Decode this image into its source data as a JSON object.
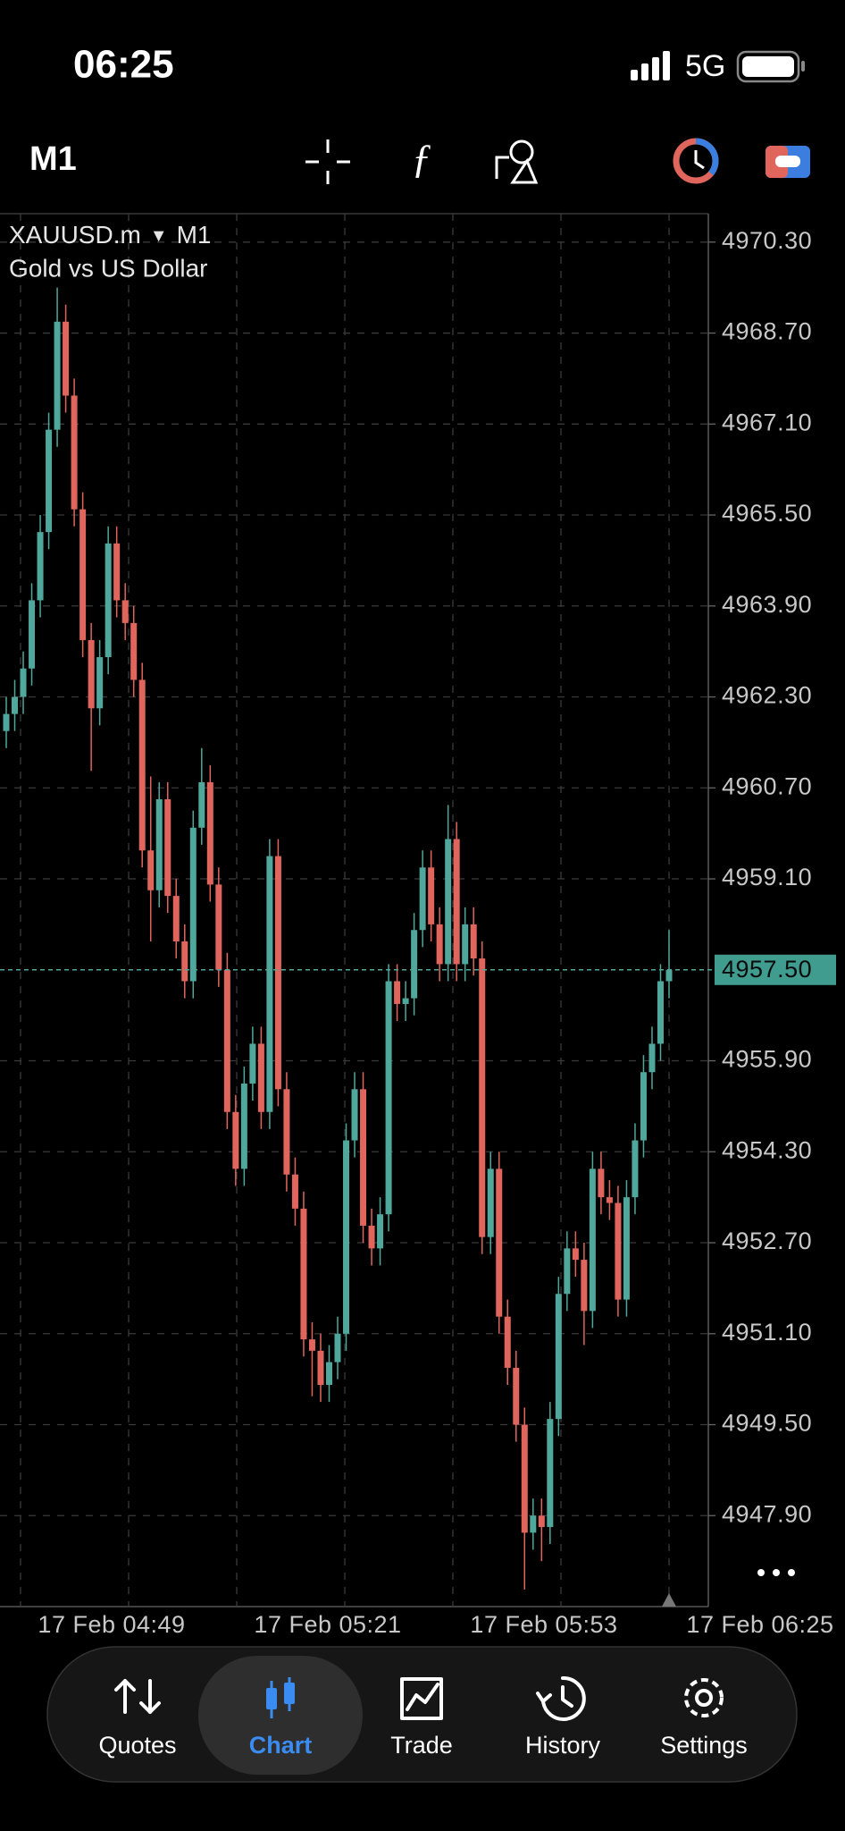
{
  "status_bar": {
    "time": "06:25",
    "network": "5G"
  },
  "toolbar": {
    "timeframe": "M1"
  },
  "chart_data": {
    "type": "candlestick",
    "title": "XAUUSD.m",
    "subtitle": "Gold vs US Dollar",
    "up_color": "#4fa89b",
    "down_color": "#e0665d",
    "grid": true,
    "open": [
      4961.7,
      4962.0,
      4962.3,
      4962.8,
      4964.0,
      4965.2,
      4967.0,
      4968.9,
      4967.6,
      4965.6,
      4963.3,
      4962.1,
      4963.0,
      4965.0,
      4964.0,
      4963.6,
      4962.6,
      4959.6,
      4958.9,
      4960.5,
      4958.8,
      4958.0,
      4957.3,
      4960.0,
      4960.8,
      4959.0,
      4957.5,
      4955.0,
      4954.0,
      4955.5,
      4956.2,
      4955.0,
      4959.5,
      4955.4,
      4953.9,
      4953.3,
      4951.0,
      4950.8,
      4950.2,
      4950.6,
      4951.1,
      4954.5,
      4955.4,
      4953.0,
      4952.6,
      4953.2,
      4957.3,
      4956.9,
      4957.0,
      4958.2,
      4959.3,
      4958.3,
      4957.6,
      4959.8,
      4957.6,
      4958.3,
      4957.7,
      4952.8,
      4954.0,
      4951.4,
      4950.5,
      4949.5,
      4947.6,
      4947.9,
      4947.7,
      4949.6,
      4951.8,
      4952.6,
      4952.4,
      4951.5,
      4954.0,
      4953.5,
      4953.4,
      4951.7,
      4953.5,
      4954.5,
      4955.7,
      4956.2,
      4957.3
    ],
    "high": [
      4962.3,
      4962.6,
      4963.1,
      4964.3,
      4965.5,
      4967.3,
      4969.5,
      4969.2,
      4967.9,
      4965.9,
      4963.6,
      4963.3,
      4965.3,
      4965.3,
      4964.3,
      4963.9,
      4962.9,
      4960.9,
      4960.8,
      4960.8,
      4959.1,
      4958.3,
      4960.3,
      4961.4,
      4961.1,
      4959.3,
      4957.8,
      4955.3,
      4955.8,
      4956.5,
      4956.5,
      4959.8,
      4959.8,
      4955.7,
      4954.2,
      4953.6,
      4951.3,
      4951.1,
      4950.9,
      4951.4,
      4954.8,
      4955.7,
      4955.7,
      4953.3,
      4953.5,
      4957.6,
      4957.6,
      4957.3,
      4958.5,
      4959.6,
      4959.6,
      4958.6,
      4960.4,
      4960.1,
      4958.6,
      4958.6,
      4958.0,
      4954.3,
      4954.3,
      4951.7,
      4950.8,
      4949.8,
      4948.2,
      4948.2,
      4949.9,
      4952.1,
      4952.9,
      4952.9,
      4952.7,
      4954.3,
      4954.3,
      4953.8,
      4953.7,
      4953.8,
      4954.8,
      4956.0,
      4956.5,
      4957.6,
      4958.2
    ],
    "low": [
      4961.4,
      4961.7,
      4962.0,
      4962.5,
      4963.7,
      4964.9,
      4966.7,
      4967.3,
      4965.3,
      4963.0,
      4961.0,
      4961.8,
      4962.7,
      4963.7,
      4963.3,
      4962.3,
      4959.3,
      4958.0,
      4958.6,
      4958.5,
      4957.7,
      4957.0,
      4957.0,
      4959.7,
      4958.7,
      4957.2,
      4954.7,
      4953.7,
      4953.7,
      4955.2,
      4954.7,
      4954.7,
      4955.1,
      4953.6,
      4953.0,
      4950.7,
      4950.0,
      4949.9,
      4949.9,
      4950.3,
      4950.8,
      4954.2,
      4952.7,
      4952.3,
      4952.3,
      4952.9,
      4956.6,
      4956.6,
      4956.7,
      4957.9,
      4958.0,
      4957.3,
      4957.3,
      4957.3,
      4957.3,
      4957.4,
      4952.5,
      4952.5,
      4951.1,
      4950.2,
      4949.2,
      4946.6,
      4947.3,
      4947.1,
      4947.4,
      4949.3,
      4951.5,
      4952.1,
      4950.9,
      4951.2,
      4953.2,
      4953.1,
      4951.4,
      4951.4,
      4953.2,
      4954.2,
      4955.4,
      4955.9,
      4957.0
    ],
    "close": [
      4962.0,
      4962.3,
      4962.8,
      4964.0,
      4965.2,
      4967.0,
      4968.9,
      4967.6,
      4965.6,
      4963.3,
      4962.1,
      4963.0,
      4965.0,
      4964.0,
      4963.6,
      4962.6,
      4959.6,
      4958.9,
      4960.5,
      4958.8,
      4958.0,
      4957.3,
      4960.0,
      4960.8,
      4959.0,
      4957.5,
      4955.0,
      4954.0,
      4955.5,
      4956.2,
      4955.0,
      4959.5,
      4955.4,
      4953.9,
      4953.3,
      4951.0,
      4950.8,
      4950.2,
      4950.6,
      4951.1,
      4954.5,
      4955.4,
      4953.0,
      4952.6,
      4953.2,
      4957.3,
      4956.9,
      4957.0,
      4958.2,
      4959.3,
      4958.3,
      4957.6,
      4959.8,
      4957.6,
      4958.3,
      4957.7,
      4952.8,
      4954.0,
      4951.4,
      4950.5,
      4949.5,
      4947.6,
      4947.9,
      4947.7,
      4949.6,
      4951.8,
      4952.6,
      4952.4,
      4951.5,
      4954.0,
      4953.5,
      4953.4,
      4951.7,
      4953.5,
      4954.5,
      4955.7,
      4956.2,
      4957.3,
      4957.5
    ],
    "ylim": [
      4946.3,
      4970.8
    ],
    "yticks": [
      {
        "value": 4970.3,
        "label": "4970.30"
      },
      {
        "value": 4968.7,
        "label": "4968.70"
      },
      {
        "value": 4967.1,
        "label": "4967.10"
      },
      {
        "value": 4965.5,
        "label": "4965.50"
      },
      {
        "value": 4963.9,
        "label": "4963.90"
      },
      {
        "value": 4962.3,
        "label": "4962.30"
      },
      {
        "value": 4960.7,
        "label": "4960.70"
      },
      {
        "value": 4959.1,
        "label": "4959.10"
      },
      {
        "value": 4955.9,
        "label": "4955.90"
      },
      {
        "value": 4954.3,
        "label": "4954.30"
      },
      {
        "value": 4952.7,
        "label": "4952.70"
      },
      {
        "value": 4951.1,
        "label": "4951.10"
      },
      {
        "value": 4949.5,
        "label": "4949.50"
      },
      {
        "value": 4947.9,
        "label": "4947.90"
      }
    ],
    "current_price": {
      "value": 4957.5,
      "label": "4957.50"
    },
    "x_labels": [
      "17 Feb 04:49",
      "17 Feb 05:21",
      "17 Feb 05:53",
      "17 Feb 06:25"
    ]
  },
  "tab_bar": {
    "tabs": [
      "Quotes",
      "Chart",
      "Trade",
      "History",
      "Settings"
    ],
    "active": 1
  }
}
